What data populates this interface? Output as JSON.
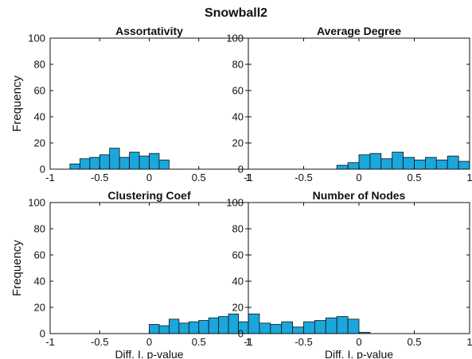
{
  "figure": {
    "title": "Snowball2"
  },
  "colors": {
    "bar_fill": "#1aa7dc",
    "bar_edge": "#111111",
    "axis": "#111111"
  },
  "chart_data": [
    {
      "type": "bar",
      "title": "Assortativity",
      "xlabel": "",
      "ylabel": "Frequency",
      "xlim": [
        -1,
        1
      ],
      "ylim": [
        0,
        100
      ],
      "xticks": [
        "-1",
        "-0.5",
        "0",
        "0.5",
        "1"
      ],
      "yticks": [
        "0",
        "20",
        "40",
        "60",
        "80",
        "100"
      ],
      "bin_width": 0.1,
      "bin_left_edges": [
        -0.8,
        -0.7,
        -0.6,
        -0.5,
        -0.4,
        -0.3,
        -0.2,
        -0.1,
        0.0,
        0.1
      ],
      "values": [
        4,
        8,
        9,
        11,
        16,
        9,
        13,
        10,
        12,
        7
      ]
    },
    {
      "type": "bar",
      "title": "Average Degree",
      "xlabel": "",
      "ylabel": "",
      "xlim": [
        -1,
        1
      ],
      "ylim": [
        0,
        100
      ],
      "xticks": [
        "-1",
        "-0.5",
        "0",
        "0.5",
        "1"
      ],
      "yticks": [
        "0",
        "20",
        "40",
        "60",
        "80",
        "100"
      ],
      "bin_width": 0.1,
      "bin_left_edges": [
        -0.2,
        -0.1,
        0.0,
        0.1,
        0.2,
        0.3,
        0.4,
        0.5,
        0.6,
        0.7,
        0.8,
        0.9
      ],
      "values": [
        3,
        5,
        11,
        12,
        8,
        13,
        9,
        7,
        9,
        7,
        10,
        6
      ]
    },
    {
      "type": "bar",
      "title": "Clustering Coef",
      "xlabel": "Diff. I. p-value",
      "ylabel": "Frequency",
      "xlim": [
        -1,
        1
      ],
      "ylim": [
        0,
        100
      ],
      "xticks": [
        "-1",
        "-0.5",
        "0",
        "0.5",
        "1"
      ],
      "yticks": [
        "0",
        "20",
        "40",
        "60",
        "80",
        "100"
      ],
      "bin_width": 0.1,
      "bin_left_edges": [
        0.0,
        0.1,
        0.2,
        0.3,
        0.4,
        0.5,
        0.6,
        0.7,
        0.8,
        0.9
      ],
      "values": [
        7,
        6,
        11,
        8,
        9,
        10,
        12,
        13,
        15,
        9
      ]
    },
    {
      "type": "bar",
      "title": "Number of Nodes",
      "xlabel": "Diff. I. p-value",
      "ylabel": "",
      "xlim": [
        -1,
        1
      ],
      "ylim": [
        0,
        100
      ],
      "xticks": [
        "-1",
        "-0.5",
        "0",
        "0.5",
        "1"
      ],
      "yticks": [
        "0",
        "20",
        "40",
        "60",
        "80",
        "100"
      ],
      "bin_width": 0.1,
      "bin_left_edges": [
        -1.0,
        -0.9,
        -0.8,
        -0.7,
        -0.6,
        -0.5,
        -0.4,
        -0.3,
        -0.2,
        -0.1,
        0.0
      ],
      "values": [
        15,
        8,
        7,
        9,
        5,
        9,
        10,
        12,
        13,
        11,
        1
      ]
    }
  ]
}
